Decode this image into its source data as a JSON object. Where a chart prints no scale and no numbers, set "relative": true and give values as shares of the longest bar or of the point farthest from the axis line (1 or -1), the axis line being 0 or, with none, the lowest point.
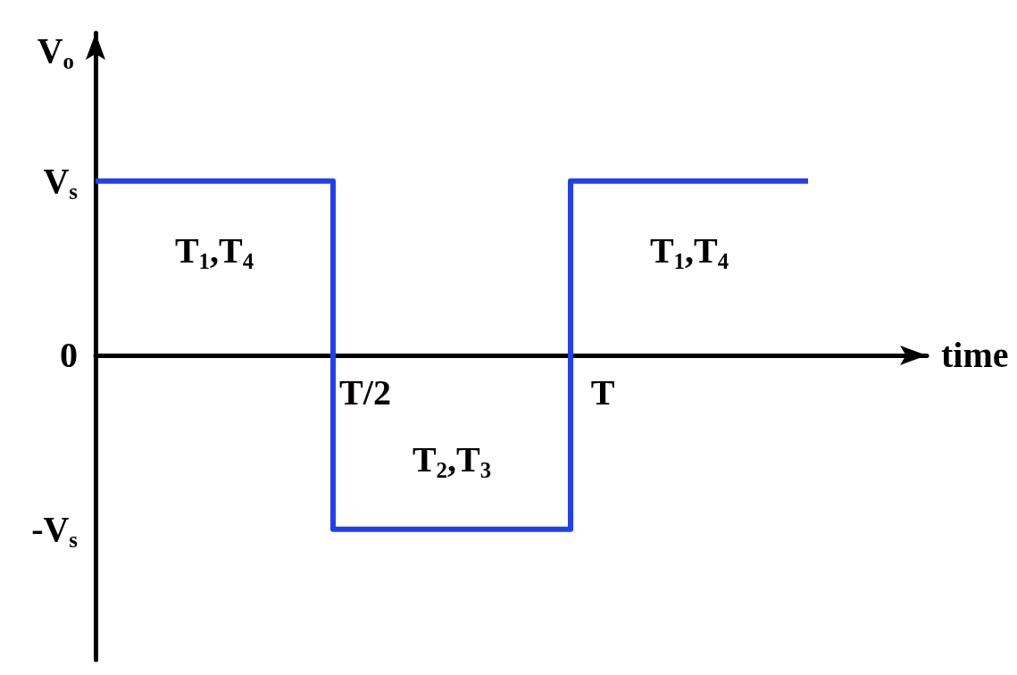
{
  "chart_data": {
    "type": "step",
    "relative": true,
    "xlabel": "time",
    "ylabel": "V$_{o}$",
    "categories": [
      null,
      "T/2",
      "T",
      null
    ],
    "values": [
      1,
      -1,
      1,
      1
    ],
    "color": "#2040f0",
    "marker": "none",
    "line_style": "solid",
    "annotations": [
      "V$_{s}$",
      "0",
      "-V$_{s}$",
      "T$_{1}$,T$_{4}$",
      "T$_{2}$,T$_{3}$",
      "T$_{1}$,T$_{4}$"
    ]
  }
}
